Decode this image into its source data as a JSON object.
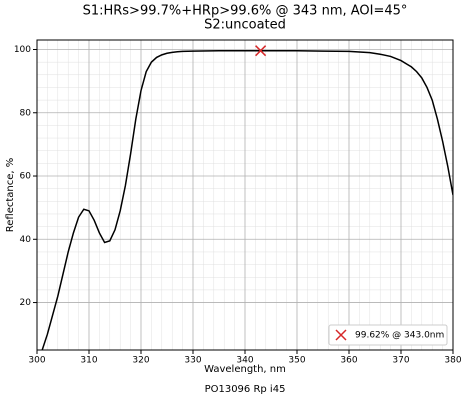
{
  "chart_data": {
    "type": "line",
    "title": "S1:HRs>99.7%+HRp>99.6% @ 343 nm, AOI=45°",
    "subtitle": "S2:uncoated",
    "footer": "PO13096 Rp i45",
    "x_label": "Wavelength, nm",
    "y_label": "Reflectance, %",
    "x": [
      301,
      302,
      303,
      304,
      305,
      306,
      307,
      308,
      309,
      310,
      311,
      312,
      313,
      314,
      315,
      316,
      317,
      318,
      319,
      320,
      321,
      322,
      323,
      324,
      325,
      326,
      327,
      328,
      330,
      335,
      340,
      343,
      345,
      350,
      355,
      360,
      362,
      364,
      366,
      368,
      370,
      371,
      372,
      373,
      374,
      375,
      376,
      377,
      378,
      379,
      380
    ],
    "series": [
      {
        "name": "Rp",
        "color": "#000000",
        "values": [
          5,
          10,
          16,
          22,
          29,
          36,
          42,
          47,
          49.5,
          49,
          46,
          42,
          39,
          39.5,
          43,
          49,
          57,
          67,
          78,
          87,
          93,
          96,
          97.5,
          98.3,
          98.8,
          99.1,
          99.3,
          99.4,
          99.5,
          99.6,
          99.6,
          99.62,
          99.6,
          99.6,
          99.5,
          99.4,
          99.2,
          99,
          98.5,
          97.8,
          96.5,
          95.5,
          94.5,
          93,
          91,
          88,
          84,
          78,
          71,
          63,
          54
        ]
      }
    ],
    "marker": {
      "x": 343.0,
      "y": 99.62,
      "color": "#d62728",
      "label": "99.62% @ 343.0nm"
    },
    "xlim": [
      300,
      380
    ],
    "ylim": [
      5,
      103
    ],
    "xticks": [
      300,
      310,
      320,
      330,
      340,
      350,
      360,
      370,
      380
    ],
    "yticks": [
      20,
      40,
      60,
      80,
      100
    ],
    "grid": true,
    "legend": "lower right"
  }
}
